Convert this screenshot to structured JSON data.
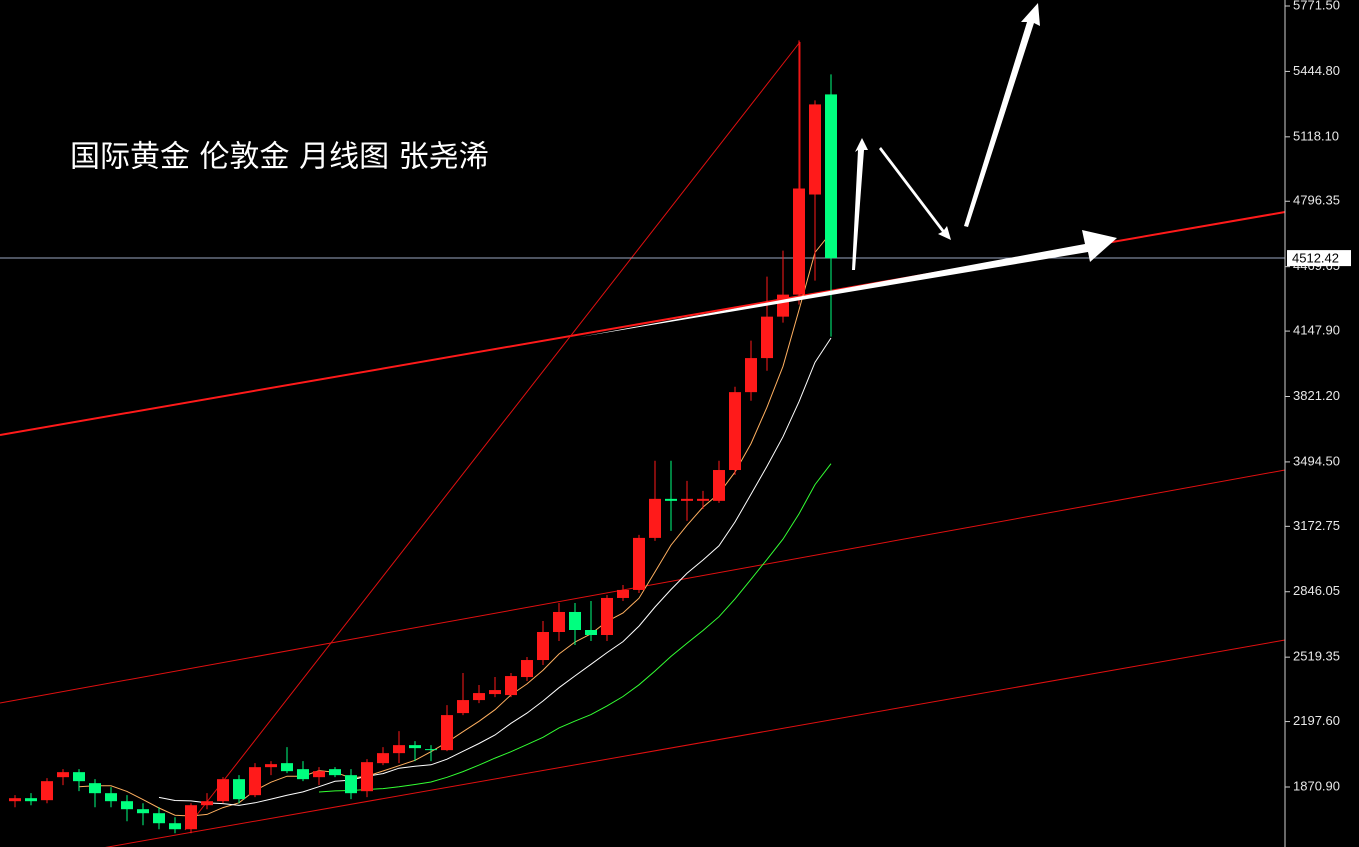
{
  "chart_data": {
    "type": "candlestick",
    "title": "国际黄金 伦敦金 月线图 张尧浠",
    "open": [
      1800,
      1815,
      1805,
      1920,
      1945,
      1890,
      1840,
      1800,
      1760,
      1740,
      1690,
      1660,
      1780,
      1800,
      1910,
      1830,
      1970,
      1990,
      1960,
      1920,
      1960,
      1930,
      1850,
      1990,
      2040,
      2080,
      2060,
      2055,
      2240,
      2305,
      2335,
      2330,
      2420,
      2505,
      2645,
      2745,
      2655,
      2630,
      2815,
      2855,
      3115,
      3310,
      3300,
      3300,
      3300,
      3454,
      3843,
      4013,
      4220,
      4330,
      4830,
      5330
    ],
    "high": [
      1830,
      1840,
      1915,
      1960,
      1960,
      1910,
      1870,
      1830,
      1790,
      1770,
      1720,
      1790,
      1840,
      1920,
      1930,
      1990,
      2000,
      2070,
      2000,
      1970,
      1970,
      1960,
      2010,
      2070,
      2150,
      2100,
      2080,
      2280,
      2440,
      2380,
      2420,
      2440,
      2520,
      2700,
      2790,
      2790,
      2800,
      2830,
      2880,
      3130,
      3500,
      3500,
      3400,
      3350,
      3500,
      3870,
      4100,
      4420,
      4550,
      5600,
      5300,
      5430
    ],
    "low": [
      1770,
      1780,
      1790,
      1880,
      1850,
      1770,
      1770,
      1700,
      1680,
      1660,
      1640,
      1640,
      1760,
      1790,
      1790,
      1820,
      1930,
      1940,
      1900,
      1880,
      1920,
      1810,
      1820,
      1980,
      1990,
      2000,
      2000,
      2050,
      2230,
      2290,
      2320,
      2320,
      2400,
      2480,
      2600,
      2580,
      2600,
      2600,
      2800,
      2840,
      3100,
      3150,
      3200,
      3260,
      3290,
      3430,
      3800,
      3950,
      4190,
      4280,
      4400,
      4120
    ],
    "close": [
      1815,
      1800,
      1900,
      1945,
      1900,
      1840,
      1800,
      1760,
      1740,
      1690,
      1660,
      1780,
      1800,
      1910,
      1810,
      1970,
      1985,
      1950,
      1910,
      1950,
      1930,
      1840,
      1995,
      2040,
      2080,
      2065,
      2055,
      2230,
      2305,
      2340,
      2355,
      2425,
      2505,
      2645,
      2745,
      2655,
      2630,
      2815,
      2855,
      3115,
      3310,
      3300,
      3310,
      3310,
      3454,
      3843,
      4013,
      4220,
      4330,
      4860,
      5280,
      4512
    ],
    "up_color": "#ff1a1a",
    "down_color": "#00ff7f",
    "ylim": [
      1571.2,
      5801.5
    ],
    "yticks": [
      {
        "value": 5771.5,
        "label": "5771.50"
      },
      {
        "value": 5444.8,
        "label": "5444.80"
      },
      {
        "value": 5118.1,
        "label": "5118.10"
      },
      4796.35,
      4469.65,
      {
        "value": 4147.9,
        "label": "4147.90"
      },
      {
        "value": 3821.2,
        "label": "3821.20"
      },
      {
        "value": 3494.5,
        "label": "3494.50"
      },
      3172.75,
      2846.05,
      2519.35,
      {
        "value": 2197.6,
        "label": "2197.60"
      },
      {
        "value": 1870.9,
        "label": "1870.90"
      }
    ],
    "last_price": 4512.42
  }
}
